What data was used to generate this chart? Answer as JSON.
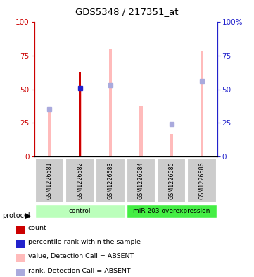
{
  "title": "GDS5348 / 217351_at",
  "samples": [
    "GSM1226581",
    "GSM1226582",
    "GSM1226583",
    "GSM1226584",
    "GSM1226585",
    "GSM1226586"
  ],
  "count_values": [
    0,
    63,
    0,
    0,
    0,
    0
  ],
  "percentile_rank_values": [
    0,
    51,
    0,
    0,
    0,
    0
  ],
  "value_absent": [
    33,
    51,
    80,
    38,
    17,
    78
  ],
  "rank_absent": [
    35,
    0,
    53,
    0,
    24,
    56
  ],
  "count_color": "#cc0000",
  "percentile_color": "#2222cc",
  "value_absent_color": "#ffbbbb",
  "rank_absent_color": "#aaaadd",
  "groups": [
    {
      "label": "control",
      "samples": [
        0,
        1,
        2
      ],
      "color": "#bbffbb"
    },
    {
      "label": "miR-203 overexpression",
      "samples": [
        3,
        4,
        5
      ],
      "color": "#44ee44"
    }
  ],
  "ylim": [
    0,
    100
  ],
  "yticks": [
    0,
    25,
    50,
    75,
    100
  ],
  "legend_items": [
    {
      "label": "count",
      "color": "#cc0000"
    },
    {
      "label": "percentile rank within the sample",
      "color": "#2222cc"
    },
    {
      "label": "value, Detection Call = ABSENT",
      "color": "#ffbbbb"
    },
    {
      "label": "rank, Detection Call = ABSENT",
      "color": "#aaaadd"
    }
  ]
}
